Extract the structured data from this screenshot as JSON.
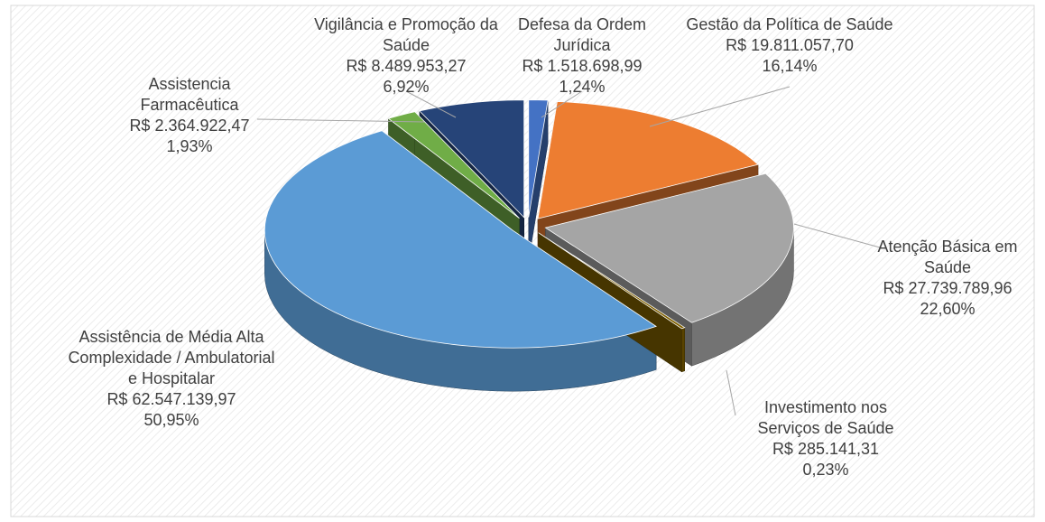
{
  "chart_data": {
    "type": "pie",
    "categories": [
      "Defesa da Ordem Jurídica",
      "Gestão da Política de Saúde",
      "Atenção Básica em Saúde",
      "Investimento nos Serviços de Saúde",
      "Assistência de Média Alta Complexidade / Ambulatorial e Hospitalar",
      "Assistencia Farmacêutica",
      "Vigilância e Promoção da Saúde"
    ],
    "values": [
      1518698.99,
      19811057.7,
      27739789.96,
      285141.31,
      62547139.97,
      2364922.47,
      8489953.27
    ],
    "value_labels": [
      "R$ 1.518.698,99",
      "R$ 19.811.057,70",
      "R$ 27.739.789,96",
      "R$ 285.141,31",
      "R$ 62.547.139,97",
      "R$ 2.364.922,47",
      "R$ 8.489.953,27"
    ],
    "percents": [
      1.24,
      16.14,
      22.6,
      0.23,
      50.95,
      1.93,
      6.92
    ],
    "percent_labels": [
      "1,24%",
      "16,14%",
      "22,60%",
      "0,23%",
      "50,95%",
      "1,93%",
      "6,92%"
    ],
    "colors": [
      "#4472c4",
      "#ed7d31",
      "#a5a5a5",
      "#7f6000",
      "#5b9bd5",
      "#70ad47",
      "#264478"
    ]
  }
}
